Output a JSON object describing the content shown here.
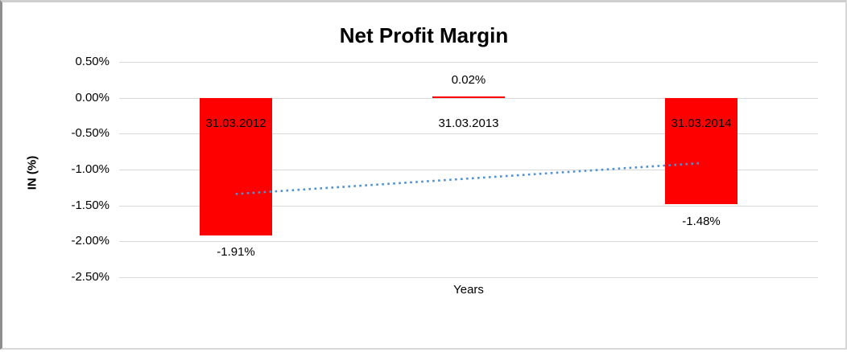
{
  "chart_data": {
    "type": "bar",
    "title": "Net Profit Margin",
    "xlabel": "Years",
    "ylabel": "IN (%)",
    "categories": [
      "31.03.2012",
      "31.03.2013",
      "31.03.2014"
    ],
    "values": [
      -1.91,
      0.02,
      -1.48
    ],
    "data_labels": [
      "-1.91%",
      "0.02%",
      "-1.48%"
    ],
    "ylim": [
      -2.5,
      0.5
    ],
    "ytick_step": 0.5,
    "ytick_labels": [
      "0.50%",
      "0.00%",
      "-0.50%",
      "-1.00%",
      "-1.50%",
      "-2.00%",
      "-2.50%"
    ],
    "grid": "horizontal",
    "legend": "none",
    "bar_color": "#FF0000",
    "gridline_color": "#D9D9D9",
    "background_color": "#FFFFFF",
    "trendline": {
      "type": "linear",
      "style": "dotted",
      "color": "#4E91D2",
      "start_value": -1.34,
      "end_value": -0.91
    }
  }
}
